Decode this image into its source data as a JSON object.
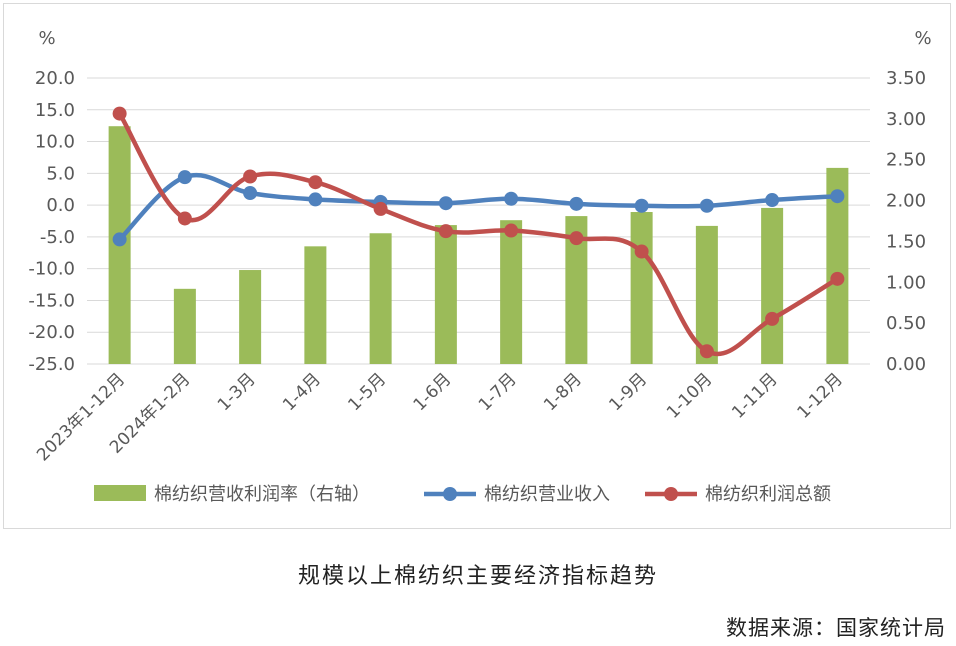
{
  "caption": "规模以上棉纺织主要经济指标趋势",
  "source": "数据来源：国家统计局",
  "chart_data": {
    "type": "bar+line",
    "left_unit": "%",
    "right_unit": "%",
    "categories": [
      "2023年1-12月",
      "2024年1-2月",
      "1-3月",
      "1-4月",
      "1-5月",
      "1-6月",
      "1-7月",
      "1-8月",
      "1-9月",
      "1-10月",
      "1-11月",
      "1-12月"
    ],
    "left_ticks": [
      "20.0",
      "15.0",
      "10.0",
      "5.0",
      "0.0",
      "-5.0",
      "-10.0",
      "-15.0",
      "-20.0",
      "-25.0"
    ],
    "right_ticks": [
      "3.50",
      "3.00",
      "2.50",
      "2.00",
      "1.50",
      "1.00",
      "0.50",
      "0.00"
    ],
    "ylim_left": [
      -25,
      20
    ],
    "ylim_right": [
      0,
      3.5
    ],
    "grid": true,
    "legend_position": "bottom",
    "series": [
      {
        "name": "棉纺织营收利润率（右轴）",
        "type": "bar",
        "axis": "right",
        "color": "#9bbb59",
        "values": [
          2.91,
          0.92,
          1.15,
          1.44,
          1.6,
          1.7,
          1.76,
          1.81,
          1.86,
          1.69,
          1.91,
          2.4
        ]
      },
      {
        "name": "棉纺织营业收入",
        "type": "line",
        "axis": "left",
        "color": "#4f81bd",
        "values": [
          -5.4,
          4.4,
          1.9,
          0.9,
          0.5,
          0.3,
          1.0,
          0.2,
          -0.1,
          -0.1,
          0.8,
          1.4
        ]
      },
      {
        "name": "棉纺织利润总额",
        "type": "line",
        "axis": "left",
        "color": "#c0504d",
        "values": [
          14.4,
          -2.1,
          4.5,
          3.6,
          -0.6,
          -4.1,
          -4.0,
          -5.2,
          -7.3,
          -23.0,
          -17.9,
          -11.6
        ]
      }
    ]
  }
}
